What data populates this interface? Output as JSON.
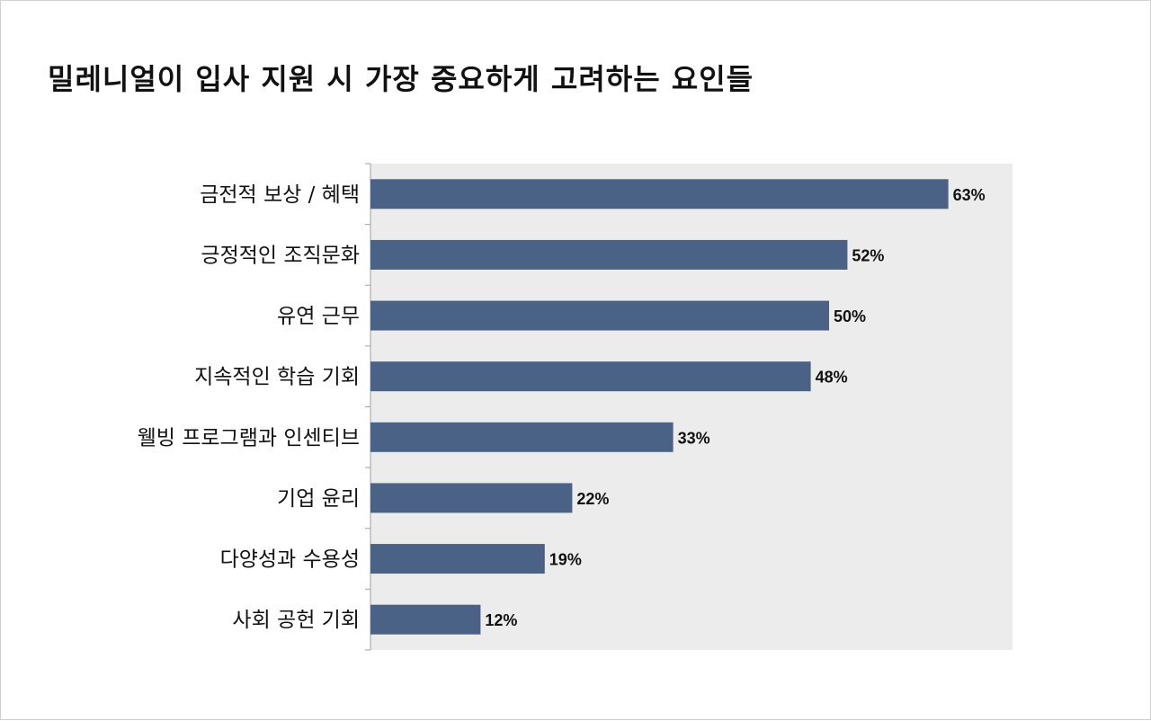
{
  "chart_data": {
    "type": "bar",
    "orientation": "horizontal",
    "title": "밀레니얼이 입사 지원 시 가장 중요하게 고려하는 요인들",
    "categories": [
      "금전적 보상 / 혜택",
      "긍정적인 조직문화",
      "유연 근무",
      "지속적인 학습 기회",
      "웰빙 프로그램과 인센티브",
      "기업 윤리",
      "다양성과 수용성",
      "사회 공헌 기회"
    ],
    "values": [
      63,
      52,
      50,
      48,
      33,
      22,
      19,
      12
    ],
    "value_labels": [
      "63%",
      "52%",
      "50%",
      "48%",
      "33%",
      "22%",
      "19%",
      "12%"
    ],
    "xlim": [
      0,
      70
    ],
    "grid": false,
    "legend": "none",
    "bar_color": "#4a6286",
    "plot_background": "#ececec"
  }
}
